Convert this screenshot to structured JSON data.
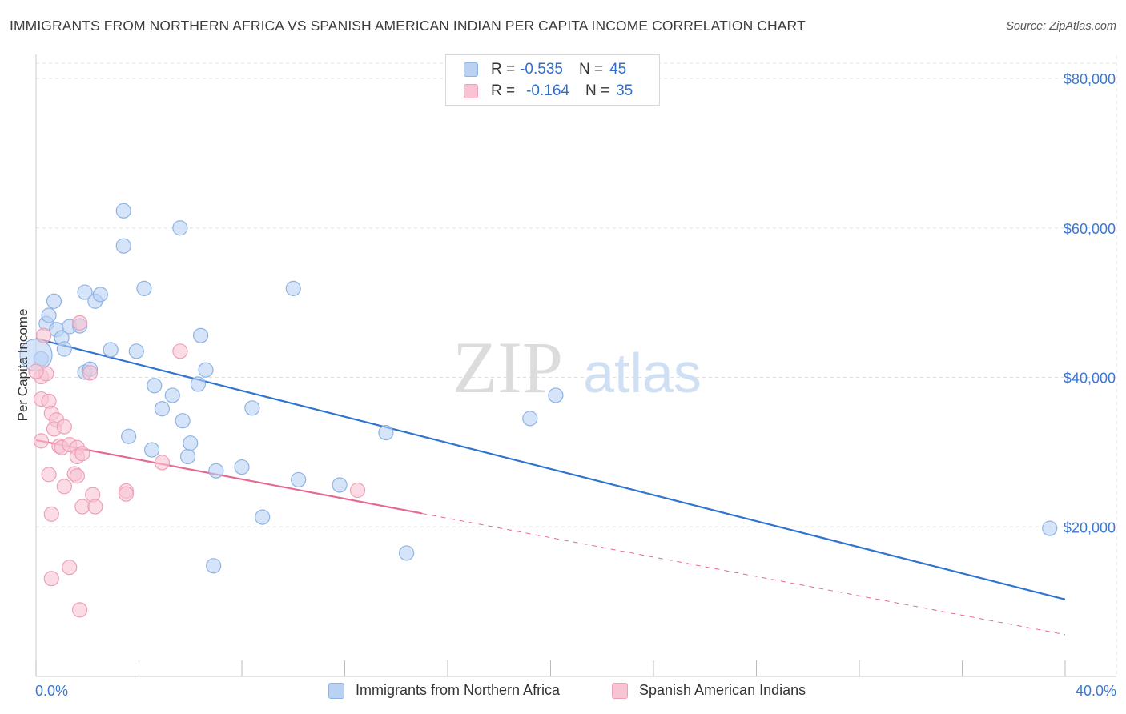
{
  "title": "IMMIGRANTS FROM NORTHERN AFRICA VS SPANISH AMERICAN INDIAN PER CAPITA INCOME CORRELATION CHART",
  "source": "Source: ZipAtlas.com",
  "watermark": {
    "zip": "ZIP",
    "atlas": "atlas"
  },
  "legend": {
    "rows": [
      {
        "r_label": "R =",
        "r_value": "-0.535",
        "n_label": "N =",
        "n_value": "45"
      },
      {
        "r_label": "R =",
        "r_value": "-0.164",
        "n_label": "N =",
        "n_value": "35"
      }
    ]
  },
  "colors": {
    "blue_fill": "#b9d2f3",
    "blue_stroke": "#8fb3e3",
    "blue_line": "#2f74d0",
    "pink_fill": "#f8c4d4",
    "pink_stroke": "#eea0b8",
    "pink_line": "#e46a93",
    "axis_text_blue": "#3b78d3",
    "grid": "#e0e0e0"
  },
  "chart_data": {
    "type": "scatter",
    "ylabel": "Per Capita Income",
    "xlim": [
      0,
      40
    ],
    "ylim": [
      0,
      83000
    ],
    "x_tick_labels": [
      "0.0%",
      "40.0%"
    ],
    "y_ticks": [
      20000,
      40000,
      60000,
      80000
    ],
    "y_tick_labels": [
      "$20,000",
      "$40,000",
      "$60,000",
      "$80,000"
    ],
    "grid": true,
    "series": [
      {
        "name": "Immigrants from Northern Africa",
        "color": "#b9d2f3",
        "points": [
          [
            0.2,
            42500
          ],
          [
            0.4,
            47200
          ],
          [
            0.5,
            48300
          ],
          [
            0.7,
            50200
          ],
          [
            0.8,
            46400
          ],
          [
            1.0,
            45300
          ],
          [
            1.1,
            43800
          ],
          [
            1.3,
            46800
          ],
          [
            1.9,
            40700
          ],
          [
            2.1,
            41100
          ],
          [
            1.9,
            51400
          ],
          [
            2.3,
            50200
          ],
          [
            2.5,
            51100
          ],
          [
            2.9,
            43700
          ],
          [
            3.4,
            62300
          ],
          [
            3.4,
            57600
          ],
          [
            4.2,
            51900
          ],
          [
            3.9,
            43500
          ],
          [
            4.6,
            38900
          ],
          [
            4.9,
            35800
          ],
          [
            5.3,
            37600
          ],
          [
            5.6,
            60000
          ],
          [
            5.7,
            34200
          ],
          [
            6.4,
            45600
          ],
          [
            6.3,
            39100
          ],
          [
            6.6,
            41000
          ],
          [
            3.6,
            32100
          ],
          [
            4.5,
            30300
          ],
          [
            5.9,
            29400
          ],
          [
            6.0,
            31200
          ],
          [
            7.0,
            27500
          ],
          [
            8.0,
            28000
          ],
          [
            8.4,
            35900
          ],
          [
            8.8,
            21300
          ],
          [
            10.0,
            51900
          ],
          [
            10.2,
            26300
          ],
          [
            11.8,
            25600
          ],
          [
            13.6,
            32600
          ],
          [
            14.4,
            16500
          ],
          [
            19.2,
            34500
          ],
          [
            20.2,
            37600
          ],
          [
            39.4,
            19800
          ],
          [
            6.9,
            14800
          ],
          [
            1.7,
            46900
          ],
          [
            0.0,
            43000
          ]
        ],
        "trend": {
          "x": [
            0,
            40
          ],
          "y": [
            45200,
            10300
          ]
        }
      },
      {
        "name": "Spanish American Indians",
        "color": "#f8c4d4",
        "points": [
          [
            0.3,
            45600
          ],
          [
            0.2,
            40100
          ],
          [
            0.4,
            40500
          ],
          [
            0.2,
            37100
          ],
          [
            0.5,
            36800
          ],
          [
            0.6,
            35200
          ],
          [
            0.8,
            34300
          ],
          [
            0.7,
            33100
          ],
          [
            1.1,
            33400
          ],
          [
            0.2,
            31500
          ],
          [
            0.9,
            30800
          ],
          [
            1.0,
            30600
          ],
          [
            1.3,
            31000
          ],
          [
            1.6,
            30600
          ],
          [
            1.6,
            29400
          ],
          [
            1.8,
            29800
          ],
          [
            1.5,
            27100
          ],
          [
            1.6,
            26800
          ],
          [
            0.5,
            27000
          ],
          [
            1.1,
            25400
          ],
          [
            2.2,
            24300
          ],
          [
            1.8,
            22700
          ],
          [
            2.3,
            22700
          ],
          [
            0.6,
            21700
          ],
          [
            3.5,
            24800
          ],
          [
            3.5,
            24400
          ],
          [
            4.9,
            28600
          ],
          [
            5.6,
            43500
          ],
          [
            12.5,
            24900
          ],
          [
            0.6,
            13100
          ],
          [
            1.3,
            14600
          ],
          [
            1.7,
            8900
          ],
          [
            2.1,
            40600
          ],
          [
            0.0,
            40800
          ],
          [
            1.7,
            47300
          ]
        ],
        "trend": {
          "x": [
            0,
            15
          ],
          "y": [
            31600,
            21800
          ]
        },
        "trend_dashed": {
          "x": [
            15,
            40
          ],
          "y": [
            21800,
            5600
          ]
        }
      }
    ]
  }
}
